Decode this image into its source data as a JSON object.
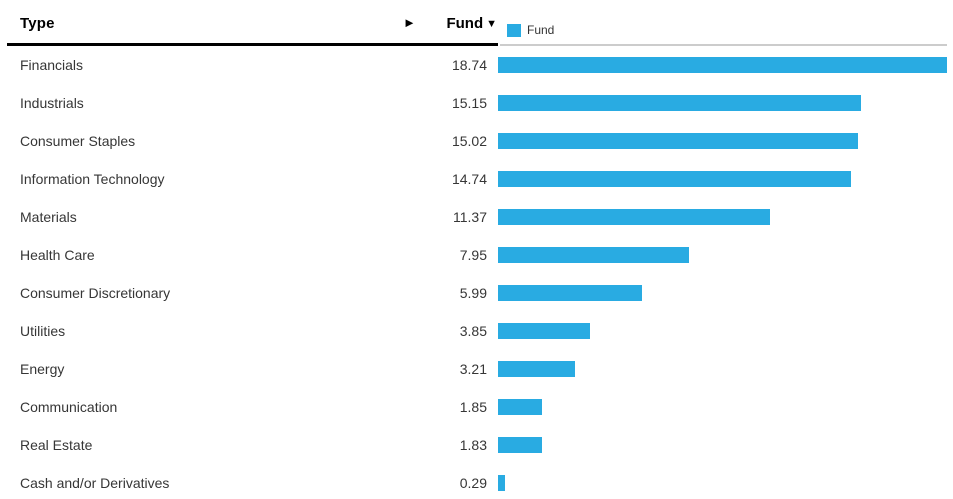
{
  "header": {
    "type_label": "Type",
    "fund_label": "Fund",
    "sort_icon": "▼",
    "scroll_arrow": "►"
  },
  "legend": {
    "label": "Fund"
  },
  "colors": {
    "bar": "#29abe2",
    "header_rule": "#000000",
    "legend_rule": "#cccccc",
    "label_text": "#363636"
  },
  "chart_data": {
    "type": "bar",
    "orientation": "horizontal",
    "title": "",
    "xlabel": "Type",
    "ylabel": "Fund",
    "categories": [
      "Financials",
      "Industrials",
      "Consumer Staples",
      "Information Technology",
      "Materials",
      "Health Care",
      "Consumer Discretionary",
      "Utilities",
      "Energy",
      "Communication",
      "Real Estate",
      "Cash and/or Derivatives"
    ],
    "series": [
      {
        "name": "Fund",
        "values": [
          18.74,
          15.15,
          15.02,
          14.74,
          11.37,
          7.95,
          5.99,
          3.85,
          3.21,
          1.85,
          1.83,
          0.29
        ]
      }
    ],
    "value_format": "0.00",
    "xlim": [
      0,
      18.74
    ],
    "grid": false,
    "legend_position": "top-right",
    "sort": "descending"
  }
}
